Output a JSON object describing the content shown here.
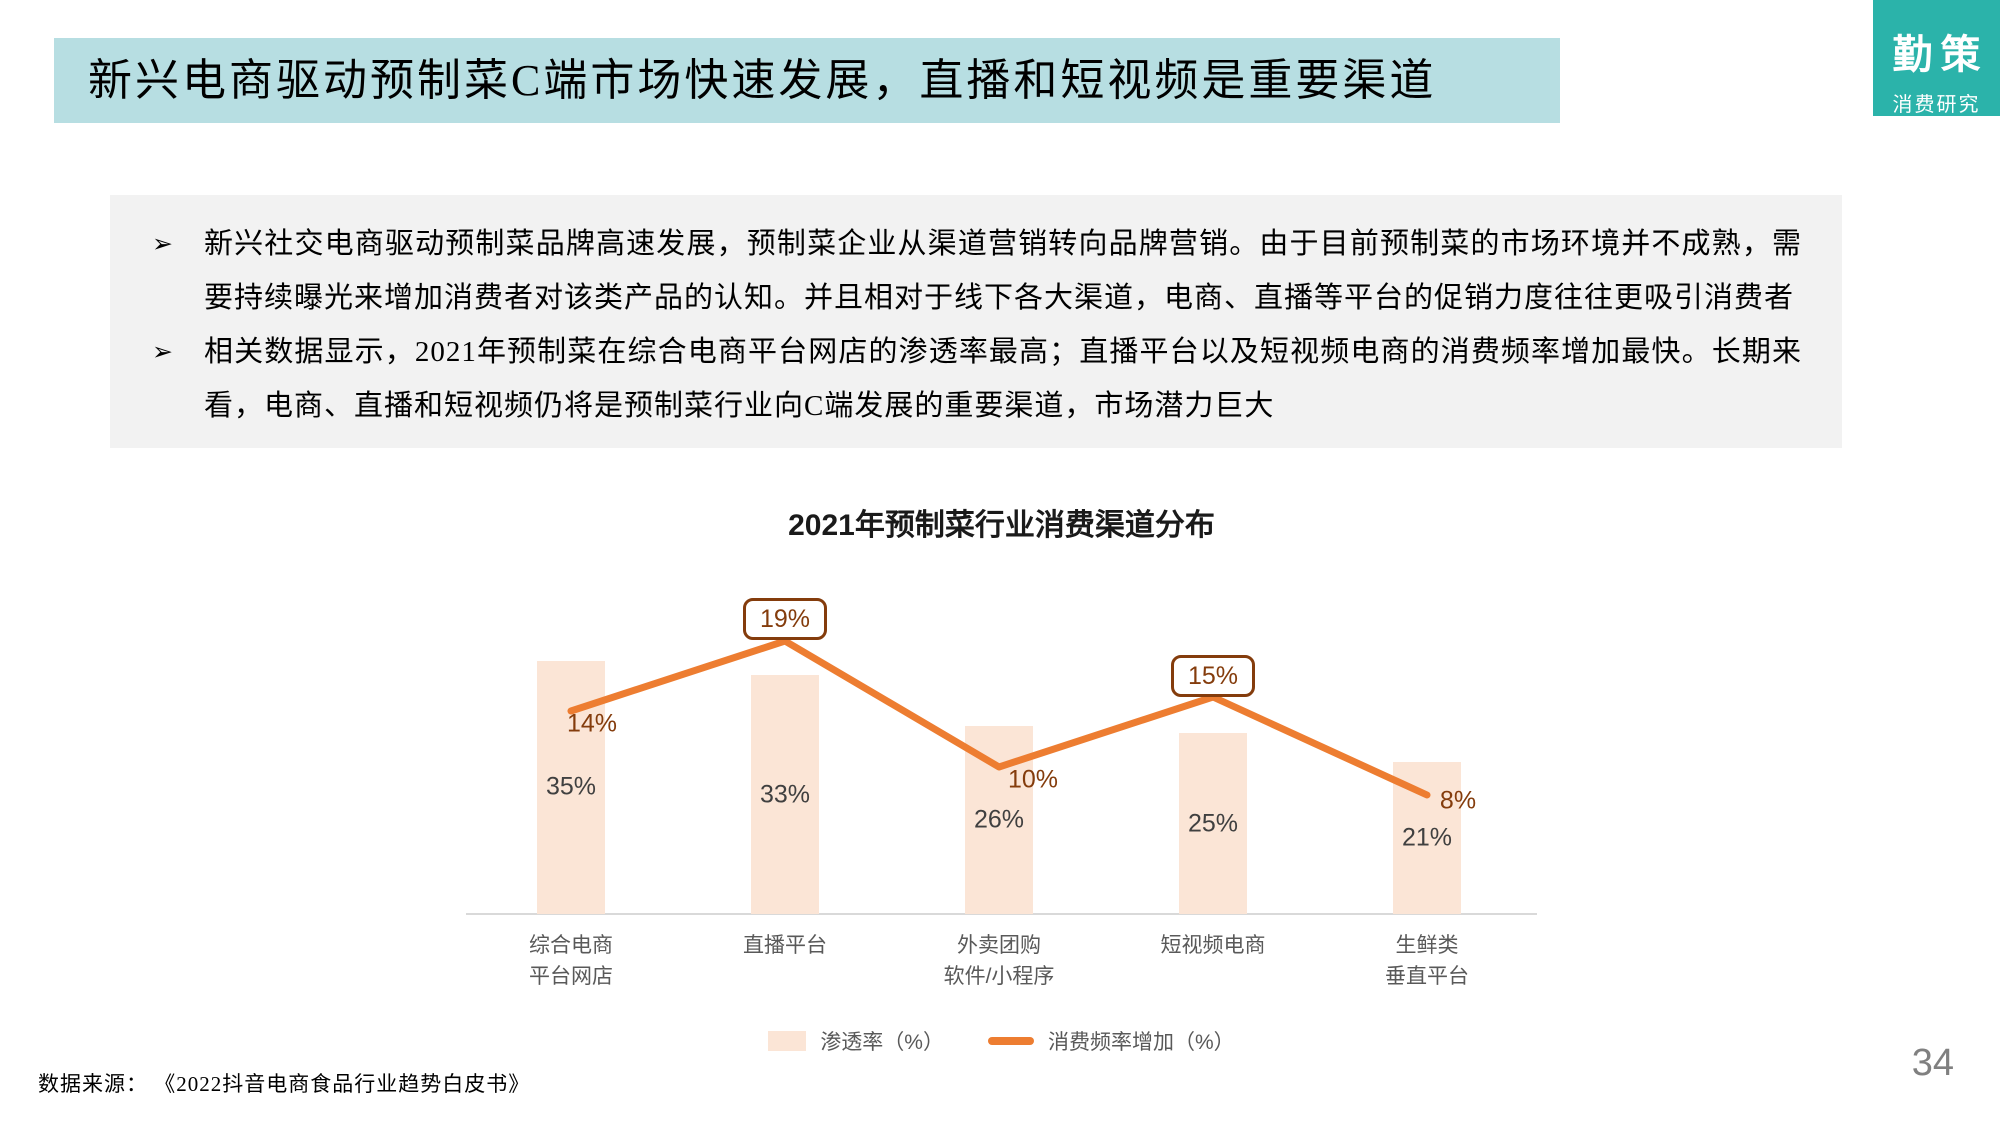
{
  "slide": {
    "title": "新兴电商驱动预制菜C端市场快速发展，直播和短视频是重要渠道",
    "source": "数据来源： 《2022抖音电商食品行业趋势白皮书》",
    "page_number": "34"
  },
  "logo": {
    "name": "勤策",
    "subtitle": "消费研究"
  },
  "summary": {
    "bullet_marker": "➢",
    "bullets": [
      "新兴社交电商驱动预制菜品牌高速发展，预制菜企业从渠道营销转向品牌营销。由于目前预制菜的市场环境并不成熟，需要持续曝光来增加消费者对该类产品的认知。并且相对于线下各大渠道，电商、直播等平台的促销力度往往更吸引消费者",
      "相关数据显示，2021年预制菜在综合电商平台网店的渗透率最高；直播平台以及短视频电商的消费频率增加最快。长期来看，电商、直播和短视频仍将是预制菜行业向C端发展的重要渠道，市场潜力巨大"
    ]
  },
  "chart_data": {
    "type": "combo",
    "title": "2021年预制菜行业消费渠道分布",
    "categories": [
      [
        "综合电商",
        "平台网店"
      ],
      [
        "直播平台"
      ],
      [
        "外卖团购",
        "软件/小程序"
      ],
      [
        "短视频电商"
      ],
      [
        "生鲜类",
        "垂直平台"
      ]
    ],
    "value_suffix": "%",
    "series": [
      {
        "name": "渗透率（%）",
        "kind": "bar",
        "values": [
          35,
          33,
          26,
          25,
          21
        ],
        "color": "#fbe5d6",
        "label_color": "#404040",
        "label_position": "inside-center"
      },
      {
        "name": "消费频率增加（%）",
        "kind": "line",
        "values": [
          14,
          19,
          10,
          15,
          8
        ],
        "color": "#ed7d31",
        "label_color": "#843c0c",
        "boxed_labels": [
          false,
          true,
          false,
          true,
          false
        ],
        "label_offsets": [
          [
            21,
            13
          ],
          [
            0,
            -22
          ],
          [
            34,
            13
          ],
          [
            0,
            -21
          ],
          [
            31,
            6
          ]
        ]
      }
    ],
    "legend_position": "bottom",
    "grid": false,
    "axes_labels_visible": false
  },
  "colors": {
    "banner_bg": "#b7dee2",
    "logo_bg": "#2bb3aa",
    "summary_box_bg": "#f2f2f2",
    "bar_fill": "#fbe5d6",
    "trend_line": "#ed7d31",
    "label_box_border": "#843c0c",
    "category_text": "#595959",
    "axis_line": "#d9d9d9",
    "page_number": "#808080"
  }
}
